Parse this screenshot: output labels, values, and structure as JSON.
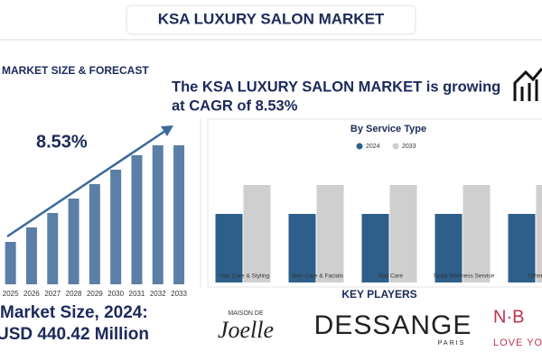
{
  "header": {
    "title": "KSA LUXURY SALON MARKET"
  },
  "headline": [
    "The KSA LUXURY SALON MARKET is growing",
    "at CAGR of 8.53%"
  ],
  "market_size": {
    "label": "Market Size, 2024:",
    "value": "USD 440.42 Million"
  },
  "key_players": {
    "title": "KEY PLAYERS",
    "logos": [
      {
        "top": "MAISON DE",
        "name": "Joelle"
      },
      {
        "name": "DESSANGE",
        "sub": "PARIS"
      },
      {
        "name": "N·B",
        "sub": "LOVE YOU"
      }
    ]
  },
  "chart_data": [
    {
      "type": "bar",
      "title": "MARKET SIZE & FORECAST",
      "annotation": "8.53%",
      "categories": [
        "2025",
        "2026",
        "2027",
        "2028",
        "2029",
        "2030",
        "2031",
        "2032",
        "2033"
      ],
      "values": [
        47,
        63,
        79,
        95,
        111,
        127,
        143,
        154,
        154
      ],
      "color": "#5b7fa6",
      "ylim": [
        0,
        160
      ]
    },
    {
      "type": "grouped_bar",
      "title": "By Service Type",
      "categories": [
        "Hair Care & Styling",
        "Skin Care & Facials",
        "Nail Care",
        "Spa& Wellness Service",
        "Others"
      ],
      "series": [
        {
          "name": "2024",
          "color": "#2e5f8a",
          "values": [
            76,
            76,
            76,
            76,
            76
          ]
        },
        {
          "name": "2033",
          "color": "#cfcfcf",
          "values": [
            108,
            108,
            108,
            108,
            108
          ]
        }
      ],
      "ylim": [
        0,
        140
      ]
    }
  ]
}
